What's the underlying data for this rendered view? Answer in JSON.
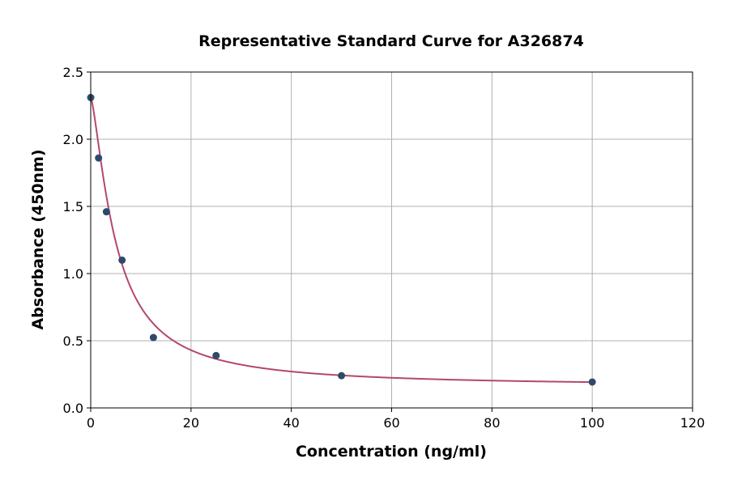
{
  "chart_data": {
    "type": "scatter",
    "title": "Representative Standard Curve for A326874",
    "xlabel": "Concentration (ng/ml)",
    "ylabel": "Absorbance (450nm)",
    "xlim": [
      0,
      120
    ],
    "ylim": [
      0,
      2.5
    ],
    "xticks": [
      "0",
      "20",
      "40",
      "60",
      "80",
      "100",
      "120"
    ],
    "yticks": [
      "0.0",
      "0.5",
      "1.0",
      "1.5",
      "2.0",
      "2.5"
    ],
    "grid": true,
    "points": {
      "x": [
        0,
        1.5625,
        3.125,
        6.25,
        12.5,
        25,
        50,
        100
      ],
      "y": [
        2.31,
        1.86,
        1.46,
        1.1,
        0.524,
        0.39,
        0.24,
        0.193
      ]
    },
    "fit": {
      "model": "4PL",
      "a": 2.31,
      "b": 1.4,
      "c": 5,
      "d": 0.16
    },
    "colors": {
      "points": "#2e4a6b",
      "curve": "#b5476e",
      "grid": "#b0b0b0"
    }
  }
}
